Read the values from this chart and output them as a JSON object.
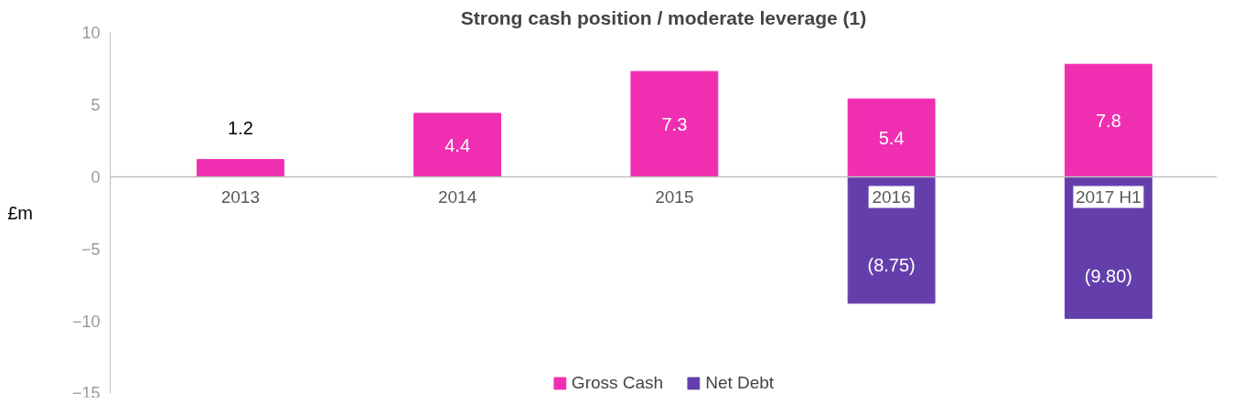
{
  "chart_data": {
    "type": "bar",
    "title": "Strong cash position / moderate leverage (1)",
    "ylabel": "£m",
    "categories": [
      "2013",
      "2014",
      "2015",
      "2016",
      "2017 H1"
    ],
    "series": [
      {
        "name": "Gross Cash",
        "color": "#f02eb1",
        "values": [
          1.2,
          4.4,
          7.3,
          5.4,
          7.8
        ],
        "value_labels": [
          "1.2",
          "4.4",
          "7.3",
          "5.4",
          "7.8"
        ]
      },
      {
        "name": "Net Debt",
        "color": "#643fac",
        "values": [
          null,
          null,
          null,
          -8.75,
          -9.8
        ],
        "value_labels": [
          null,
          null,
          null,
          "(8.75)",
          "(9.80)"
        ]
      }
    ],
    "stacked": true,
    "ylim": [
      -15,
      10
    ],
    "yticks": [
      -15,
      -10,
      -5,
      0,
      5,
      10
    ],
    "grid": false,
    "legend": "bottom"
  }
}
